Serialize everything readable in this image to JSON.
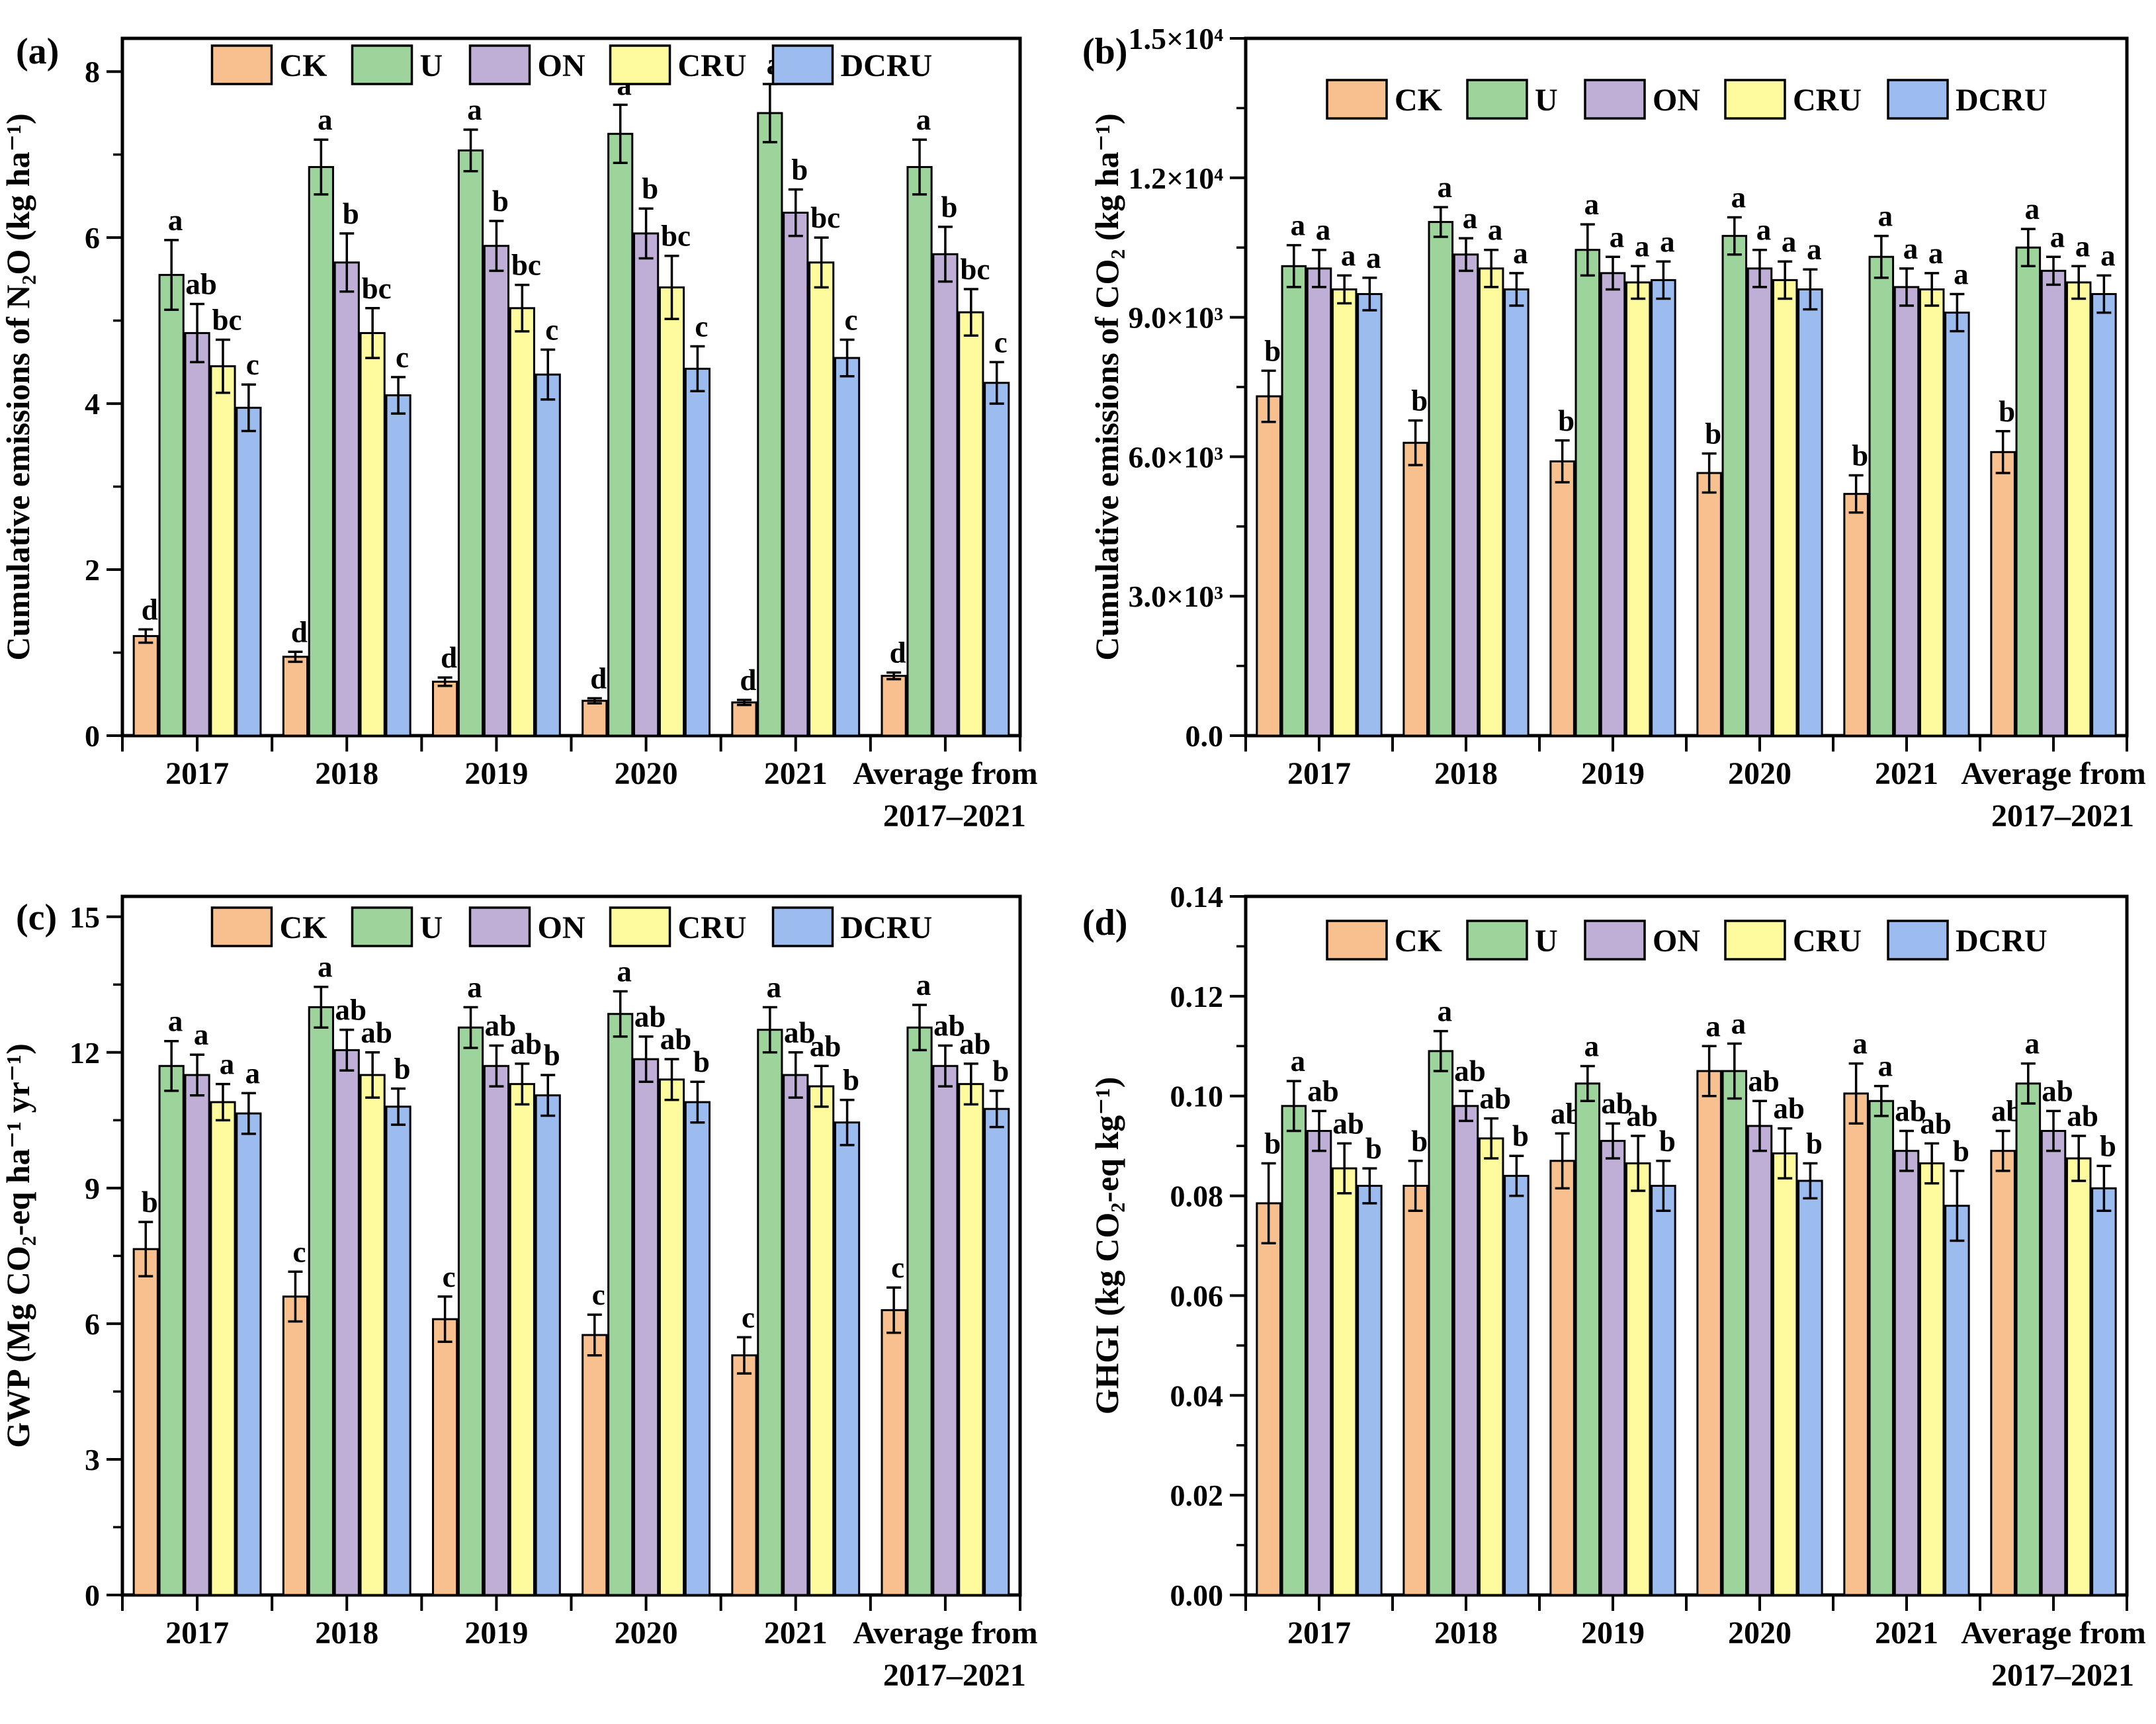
{
  "figure": {
    "background": "#FFFFFF",
    "axis_color": "#000000",
    "treatments": [
      "CK",
      "U",
      "ON",
      "CRU",
      "DCRU"
    ],
    "series_colors": {
      "CK": "#F8C08E",
      "U": "#9CD49B",
      "ON": "#BFAED6",
      "CRU": "#FDFB9E",
      "DCRU": "#9CBCF0"
    }
  },
  "chart_data": [
    {
      "type": "bar",
      "panel_label": "(a)",
      "ylabel": "Cumulative emissions of N₂O (kg ha⁻¹)",
      "xlabel": "",
      "ylim": [
        0,
        8.4
      ],
      "grid": false,
      "legend_position": "top-center-inside",
      "ytick_values": [
        0,
        2,
        4,
        6,
        8
      ],
      "ytick_labels": [
        "0",
        "2",
        "4",
        "6",
        "8"
      ],
      "yminor_values": [
        1,
        3,
        5,
        7
      ],
      "categories": [
        "2017",
        "2018",
        "2019",
        "2020",
        "2021",
        "Average from\n2017–2021"
      ],
      "series": [
        {
          "name": "CK",
          "color": "#F8C08E",
          "values": [
            1.2,
            0.95,
            0.65,
            0.42,
            0.4,
            0.72
          ],
          "errors": [
            0.08,
            0.06,
            0.05,
            0.03,
            0.03,
            0.04
          ],
          "letters": [
            "d",
            "d",
            "d",
            "d",
            "d",
            "d"
          ]
        },
        {
          "name": "U",
          "color": "#9CD49B",
          "values": [
            5.55,
            6.85,
            7.05,
            7.25,
            7.5,
            6.85
          ],
          "errors": [
            0.42,
            0.33,
            0.25,
            0.35,
            0.35,
            0.33
          ],
          "letters": [
            "a",
            "a",
            "a",
            "a",
            "a",
            "a"
          ]
        },
        {
          "name": "ON",
          "color": "#BFAED6",
          "values": [
            4.85,
            5.7,
            5.9,
            6.05,
            6.3,
            5.8
          ],
          "errors": [
            0.35,
            0.35,
            0.3,
            0.3,
            0.28,
            0.33
          ],
          "letters": [
            "ab",
            "b",
            "b",
            "b",
            "b",
            "b"
          ]
        },
        {
          "name": "CRU",
          "color": "#FDFB9E",
          "values": [
            4.45,
            4.85,
            5.15,
            5.4,
            5.7,
            5.1
          ],
          "errors": [
            0.32,
            0.3,
            0.28,
            0.38,
            0.3,
            0.28
          ],
          "letters": [
            "bc",
            "bc",
            "bc",
            "bc",
            "bc",
            "bc"
          ]
        },
        {
          "name": "DCRU",
          "color": "#9CBCF0",
          "values": [
            3.95,
            4.1,
            4.35,
            4.42,
            4.55,
            4.25
          ],
          "errors": [
            0.28,
            0.22,
            0.3,
            0.27,
            0.22,
            0.25
          ],
          "letters": [
            "c",
            "c",
            "c",
            "c",
            "c",
            "c"
          ]
        }
      ]
    },
    {
      "type": "bar",
      "panel_label": "(b)",
      "ylabel": "Cumulative emissions of CO₂ (kg ha⁻¹)",
      "xlabel": "",
      "ylim": [
        0,
        15000
      ],
      "grid": false,
      "legend_position": "top-center-inside",
      "ytick_values": [
        0,
        3000,
        6000,
        9000,
        12000,
        15000
      ],
      "ytick_labels": [
        "0.0",
        "3.0×10³",
        "6.0×10³",
        "9.0×10³",
        "1.2×10⁴",
        "1.5×10⁴"
      ],
      "yminor_values": [
        1500,
        4500,
        7500,
        10500,
        13500
      ],
      "categories": [
        "2017",
        "2018",
        "2019",
        "2020",
        "2021",
        "Average from\n2017–2021"
      ],
      "series": [
        {
          "name": "CK",
          "color": "#F8C08E",
          "values": [
            7300,
            6300,
            5900,
            5650,
            5200,
            6100
          ],
          "errors": [
            550,
            480,
            450,
            420,
            400,
            450
          ],
          "letters": [
            "b",
            "b",
            "b",
            "b",
            "b",
            "b"
          ]
        },
        {
          "name": "U",
          "color": "#9CD49B",
          "values": [
            10100,
            11050,
            10450,
            10750,
            10300,
            10500
          ],
          "errors": [
            450,
            320,
            550,
            400,
            450,
            400
          ],
          "letters": [
            "a",
            "a",
            "a",
            "a",
            "a",
            "a"
          ]
        },
        {
          "name": "ON",
          "color": "#BFAED6",
          "values": [
            10050,
            10350,
            9950,
            10050,
            9650,
            10000
          ],
          "errors": [
            400,
            350,
            350,
            400,
            400,
            300
          ],
          "letters": [
            "a",
            "a",
            "a",
            "a",
            "a",
            "a"
          ]
        },
        {
          "name": "CRU",
          "color": "#FDFB9E",
          "values": [
            9600,
            10050,
            9750,
            9800,
            9600,
            9750
          ],
          "errors": [
            300,
            400,
            350,
            400,
            350,
            350
          ],
          "letters": [
            "a",
            "a",
            "a",
            "a",
            "a",
            "a"
          ]
        },
        {
          "name": "DCRU",
          "color": "#9CBCF0",
          "values": [
            9500,
            9600,
            9800,
            9600,
            9100,
            9500
          ],
          "errors": [
            350,
            350,
            400,
            430,
            400,
            400
          ],
          "letters": [
            "a",
            "a",
            "a",
            "a",
            "a",
            "a"
          ]
        }
      ]
    },
    {
      "type": "bar",
      "panel_label": "(c)",
      "ylabel": "GWP (Mg CO₂-eq ha⁻¹ yr⁻¹)",
      "xlabel": "",
      "ylim": [
        0,
        15.45
      ],
      "grid": false,
      "legend_position": "top-center-inside",
      "ytick_values": [
        0,
        3,
        6,
        9,
        12,
        15
      ],
      "ytick_labels": [
        "0",
        "3",
        "6",
        "9",
        "12",
        "15"
      ],
      "yminor_values": [
        1.5,
        4.5,
        7.5,
        10.5,
        13.5
      ],
      "categories": [
        "2017",
        "2018",
        "2019",
        "2020",
        "2021",
        "Average from\n2017–2021"
      ],
      "series": [
        {
          "name": "CK",
          "color": "#F8C08E",
          "values": [
            7.65,
            6.6,
            6.1,
            5.75,
            5.3,
            6.3
          ],
          "errors": [
            0.6,
            0.55,
            0.5,
            0.45,
            0.4,
            0.5
          ],
          "letters": [
            "b",
            "c",
            "c",
            "c",
            "c",
            "c"
          ]
        },
        {
          "name": "U",
          "color": "#9CD49B",
          "values": [
            11.7,
            13.0,
            12.55,
            12.85,
            12.5,
            12.55
          ],
          "errors": [
            0.55,
            0.45,
            0.45,
            0.5,
            0.5,
            0.5
          ],
          "letters": [
            "a",
            "a",
            "a",
            "a",
            "a",
            "a"
          ]
        },
        {
          "name": "ON",
          "color": "#BFAED6",
          "values": [
            11.5,
            12.05,
            11.7,
            11.85,
            11.5,
            11.7
          ],
          "errors": [
            0.45,
            0.45,
            0.45,
            0.5,
            0.5,
            0.45
          ],
          "letters": [
            "a",
            "ab",
            "ab",
            "ab",
            "ab",
            "ab"
          ]
        },
        {
          "name": "CRU",
          "color": "#FDFB9E",
          "values": [
            10.9,
            11.5,
            11.3,
            11.4,
            11.25,
            11.3
          ],
          "errors": [
            0.4,
            0.5,
            0.45,
            0.45,
            0.45,
            0.45
          ],
          "letters": [
            "a",
            "ab",
            "ab",
            "ab",
            "ab",
            "ab"
          ]
        },
        {
          "name": "DCRU",
          "color": "#9CBCF0",
          "values": [
            10.65,
            10.8,
            11.05,
            10.9,
            10.45,
            10.75
          ],
          "errors": [
            0.45,
            0.4,
            0.45,
            0.45,
            0.5,
            0.4
          ],
          "letters": [
            "a",
            "b",
            "b",
            "b",
            "b",
            "b"
          ]
        }
      ]
    },
    {
      "type": "bar",
      "panel_label": "(d)",
      "ylabel": "GHGI (kg CO₂-eq kg⁻¹)",
      "xlabel": "",
      "ylim": [
        0,
        0.14
      ],
      "grid": false,
      "legend_position": "top-center-inside",
      "ytick_values": [
        0,
        0.02,
        0.04,
        0.06,
        0.08,
        0.1,
        0.12,
        0.14
      ],
      "ytick_labels": [
        "0.00",
        "0.02",
        "0.04",
        "0.06",
        "0.08",
        "0.10",
        "0.12",
        "0.14"
      ],
      "yminor_values": [
        0.01,
        0.03,
        0.05,
        0.07,
        0.09,
        0.11,
        0.13
      ],
      "categories": [
        "2017",
        "2018",
        "2019",
        "2020",
        "2021",
        "Average from\n2017–2021"
      ],
      "series": [
        {
          "name": "CK",
          "color": "#F8C08E",
          "values": [
            0.0785,
            0.082,
            0.087,
            0.105,
            0.1005,
            0.089
          ],
          "errors": [
            0.008,
            0.005,
            0.0055,
            0.005,
            0.006,
            0.004
          ],
          "letters": [
            "b",
            "b",
            "ab",
            "a",
            "a",
            "ab"
          ]
        },
        {
          "name": "U",
          "color": "#9CD49B",
          "values": [
            0.098,
            0.109,
            0.1025,
            0.105,
            0.099,
            0.1025
          ],
          "errors": [
            0.005,
            0.004,
            0.0035,
            0.0055,
            0.003,
            0.004
          ],
          "letters": [
            "a",
            "a",
            "a",
            "a",
            "a",
            "a"
          ]
        },
        {
          "name": "ON",
          "color": "#BFAED6",
          "values": [
            0.093,
            0.098,
            0.091,
            0.094,
            0.089,
            0.093
          ],
          "errors": [
            0.004,
            0.003,
            0.0035,
            0.005,
            0.004,
            0.004
          ],
          "letters": [
            "ab",
            "ab",
            "ab",
            "ab",
            "ab",
            "ab"
          ]
        },
        {
          "name": "CRU",
          "color": "#FDFB9E",
          "values": [
            0.0855,
            0.0915,
            0.0865,
            0.0885,
            0.0865,
            0.0875
          ],
          "errors": [
            0.005,
            0.004,
            0.0055,
            0.005,
            0.004,
            0.0045
          ],
          "letters": [
            "ab",
            "ab",
            "ab",
            "ab",
            "ab",
            "ab"
          ]
        },
        {
          "name": "DCRU",
          "color": "#9CBCF0",
          "values": [
            0.082,
            0.084,
            0.082,
            0.083,
            0.078,
            0.0815
          ],
          "errors": [
            0.0035,
            0.004,
            0.005,
            0.0035,
            0.007,
            0.0045
          ],
          "letters": [
            "b",
            "b",
            "b",
            "b",
            "b",
            "b"
          ]
        }
      ]
    }
  ]
}
